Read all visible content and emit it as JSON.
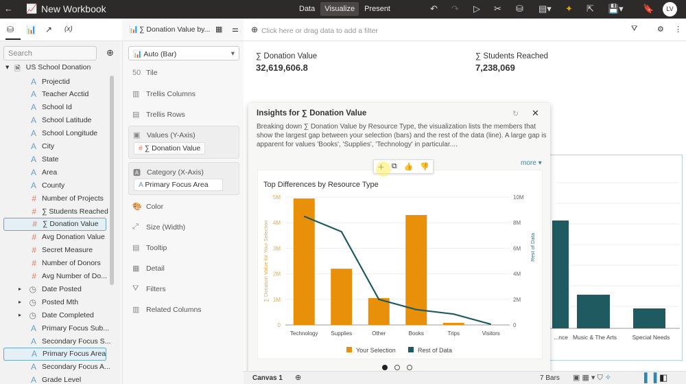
{
  "app": {
    "title": "New Workbook",
    "modes": [
      "Data",
      "Visualize",
      "Present"
    ],
    "active_mode": "Visualize",
    "avatar": "LV"
  },
  "toolbar": {
    "viz_name": "∑ Donation Value by...",
    "filter_placeholder": "Click here or drag data to add a filter",
    "panel_tabs": [
      "(x)"
    ]
  },
  "data_panel": {
    "search_placeholder": "Search",
    "dataset": "US School Donation",
    "items": [
      {
        "type": "A",
        "label": "Projectid"
      },
      {
        "type": "A",
        "label": "Teacher Acctid"
      },
      {
        "type": "A",
        "label": "School Id"
      },
      {
        "type": "A",
        "label": "School Latitude"
      },
      {
        "type": "A",
        "label": "School Longitude"
      },
      {
        "type": "A",
        "label": "City"
      },
      {
        "type": "A",
        "label": "State"
      },
      {
        "type": "A",
        "label": "Area"
      },
      {
        "type": "A",
        "label": "County"
      },
      {
        "type": "#",
        "label": "Number of Projects"
      },
      {
        "type": "#",
        "label": "∑ Students Reached"
      },
      {
        "type": "#",
        "label": "∑ Donation Value",
        "selected": true
      },
      {
        "type": "#",
        "label": "Avg Donation Value"
      },
      {
        "type": "#",
        "label": "Secret Measure"
      },
      {
        "type": "#",
        "label": "Number of Donors"
      },
      {
        "type": "#",
        "label": "Avg Number of Do..."
      },
      {
        "type": "clock",
        "label": "Date Posted",
        "expandable": true
      },
      {
        "type": "clock",
        "label": "Posted Mth",
        "expandable": true
      },
      {
        "type": "clock",
        "label": "Date Completed",
        "expandable": true
      },
      {
        "type": "A",
        "label": "Primary Focus Sub..."
      },
      {
        "type": "A",
        "label": "Secondary Focus S..."
      },
      {
        "type": "A",
        "label": "Primary Focus Area",
        "selected": true
      },
      {
        "type": "A",
        "label": "Secondary Focus A..."
      },
      {
        "type": "A",
        "label": "Grade Level"
      }
    ]
  },
  "grammar": {
    "chart_type": "Auto (Bar)",
    "tile": "Tile",
    "trellis_columns": "Trellis Columns",
    "trellis_rows": "Trellis Rows",
    "values_label": "Values (Y-Axis)",
    "values_pill": "∑ Donation Value",
    "category_label": "Category (X-Axis)",
    "category_pill": "Primary Focus Area",
    "color": "Color",
    "size": "Size (Width)",
    "tooltip": "Tooltip",
    "detail": "Detail",
    "filters": "Filters",
    "related": "Related Columns"
  },
  "tiles": [
    {
      "label": "∑ Donation Value",
      "value": "32,619,606.8"
    },
    {
      "label": "∑ Students Reached",
      "value": "7,238,069"
    }
  ],
  "insights": {
    "title": "Insights for ∑ Donation Value",
    "text": "Breaking down ∑ Donation Value by Resource Type, the visualization lists the members that show the largest gap between your selection (bars) and the rest of the data (line). A large gap is apparent for values 'Books', 'Supplies', 'Technology' in particular....",
    "more": "more",
    "page": 1,
    "pages": 3
  },
  "chart_data": {
    "type": "bar",
    "title": "Top Differences by Resource Type",
    "categories": [
      "Technology",
      "Supplies",
      "Other",
      "Books",
      "Trips",
      "Visitors"
    ],
    "series": [
      {
        "name": "Your Selection",
        "type": "bar",
        "axis": "left",
        "color": "#e8900a",
        "values": [
          4950000,
          2200000,
          1050000,
          4300000,
          80000,
          0
        ]
      },
      {
        "name": "Rest of Data",
        "type": "line",
        "axis": "right",
        "color": "#1e5a60",
        "values": [
          8500000,
          7300000,
          2000000,
          1200000,
          850000,
          50000
        ]
      }
    ],
    "ylabel": "∑ Donation Value for Your Selection",
    "y2label": "Rest of Data",
    "ylim": [
      0,
      5000000
    ],
    "y2lim": [
      0,
      10000000
    ],
    "yticks": [
      "0",
      "1M",
      "2M",
      "3M",
      "4M",
      "5M"
    ],
    "y2ticks": [
      "0",
      "2M",
      "4M",
      "6M",
      "8M",
      "10M"
    ],
    "grid": true,
    "legend": "bottom"
  },
  "background_chart": {
    "categories": [
      "...nce",
      "Music & The Arts",
      "Special Needs"
    ],
    "color": "#1e5a60"
  },
  "bottom": {
    "canvas": "Canvas 1",
    "count": "7 Bars"
  }
}
